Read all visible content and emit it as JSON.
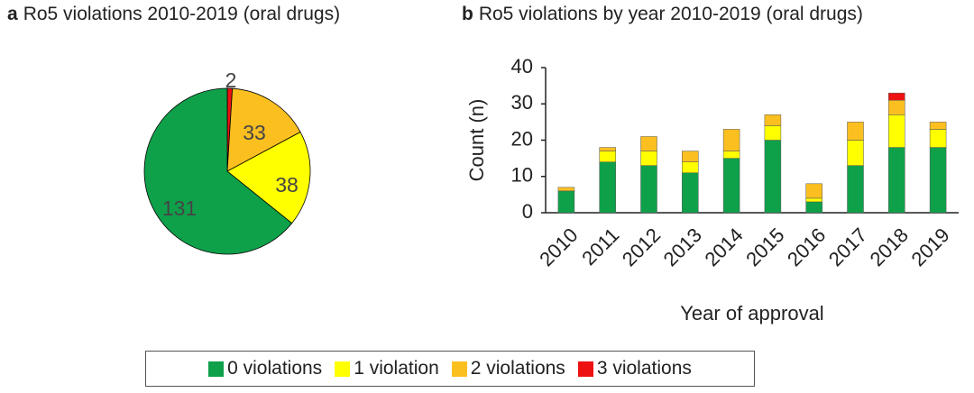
{
  "chart_data": [
    {
      "type": "pie",
      "panel": "a",
      "title": "Ro5 violations 2010-2019 (oral drugs)",
      "slices": [
        {
          "label": "3 violations",
          "value": 2,
          "color": "#ee1111"
        },
        {
          "label": "2 violations",
          "value": 33,
          "color": "#fbbf20"
        },
        {
          "label": "1 violation",
          "value": 38,
          "color": "#ffff00"
        },
        {
          "label": "0 violations",
          "value": 131,
          "color": "#0ea14a"
        }
      ]
    },
    {
      "type": "bar",
      "stacked": true,
      "panel": "b",
      "title": "Ro5 violations by year 2010-2019 (oral drugs)",
      "xlabel": "Year of approval",
      "ylabel": "Count (n)",
      "ylim": [
        0,
        40
      ],
      "yticks": [
        0,
        10,
        20,
        30,
        40
      ],
      "categories": [
        "2010",
        "2011",
        "2012",
        "2013",
        "2014",
        "2015",
        "2016",
        "2017",
        "2018",
        "2019"
      ],
      "series": [
        {
          "name": "0 violations",
          "color": "#0ea14a",
          "values": [
            6,
            14,
            13,
            11,
            15,
            20,
            3,
            13,
            18,
            18
          ]
        },
        {
          "name": "1 violation",
          "color": "#ffff00",
          "values": [
            0,
            3,
            4,
            3,
            2,
            4,
            1,
            7,
            9,
            5
          ]
        },
        {
          "name": "2 violations",
          "color": "#fbbf20",
          "values": [
            1,
            1,
            4,
            3,
            6,
            3,
            4,
            5,
            4,
            2
          ]
        },
        {
          "name": "3 violations",
          "color": "#ee1111",
          "values": [
            0,
            0,
            0,
            0,
            0,
            0,
            0,
            0,
            2,
            0
          ]
        }
      ]
    }
  ],
  "legend": [
    {
      "label": "0 violations",
      "color": "#0ea14a"
    },
    {
      "label": "1 violation",
      "color": "#ffff00"
    },
    {
      "label": "2 violations",
      "color": "#fbbf20"
    },
    {
      "label": "3 violations",
      "color": "#ee1111"
    }
  ],
  "panel_letters": {
    "a": "a",
    "b": "b"
  }
}
